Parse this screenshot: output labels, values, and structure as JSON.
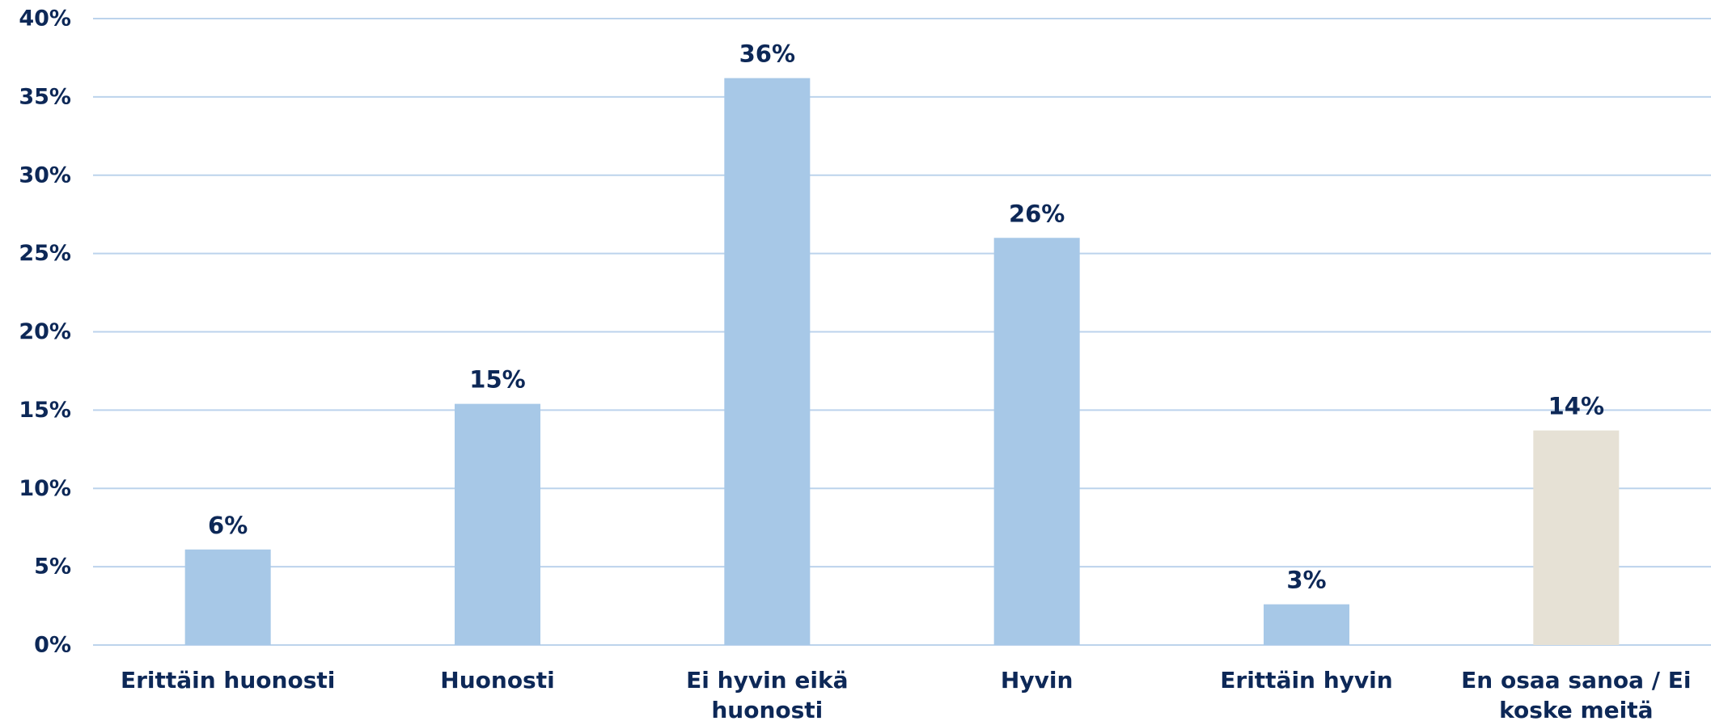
{
  "chart_data": {
    "type": "bar",
    "categories": [
      [
        "Erittäin huonosti"
      ],
      [
        "Huonosti"
      ],
      [
        "Ei hyvin eikä",
        "huonosti"
      ],
      [
        "Hyvin"
      ],
      [
        "Erittäin hyvin"
      ],
      [
        "En osaa sanoa / Ei",
        "koske meitä"
      ]
    ],
    "values": [
      6.1,
      15.4,
      36.2,
      26.0,
      2.6,
      13.7
    ],
    "data_labels": [
      "6%",
      "15%",
      "36%",
      "26%",
      "3%",
      "14%"
    ],
    "bar_colors": [
      "#a7c8e7",
      "#a7c8e7",
      "#a7c8e7",
      "#a7c8e7",
      "#a7c8e7",
      "#e6e1d5"
    ],
    "ylim": [
      0,
      40
    ],
    "yticks": [
      0,
      5,
      10,
      15,
      20,
      25,
      30,
      35,
      40
    ],
    "ytick_labels": [
      "0%",
      "5%",
      "10%",
      "15%",
      "20%",
      "25%",
      "30%",
      "35%",
      "40%"
    ],
    "grid": true,
    "title": "",
    "xlabel": "",
    "ylabel": ""
  }
}
